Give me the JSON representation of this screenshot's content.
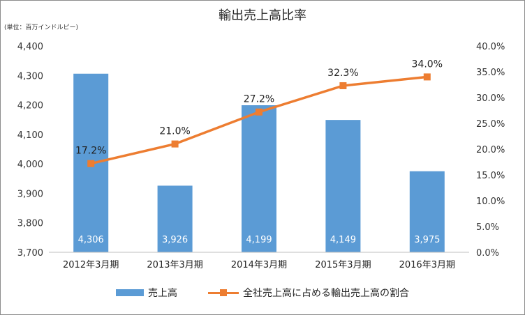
{
  "title": "輸出売上高比率",
  "unit_label": "(単位：百万インドルピー)",
  "colors": {
    "bar": "#5b9bd5",
    "line": "#ed7d31",
    "bar_label": "#ffffff"
  },
  "chart_data": {
    "type": "bar",
    "categories": [
      "2012年3月期",
      "2013年3月期",
      "2014年3月期",
      "2015年3月期",
      "2016年3月期"
    ],
    "series": [
      {
        "name": "売上高",
        "type": "bar",
        "axis": "left",
        "values": [
          4306,
          3926,
          4199,
          4149,
          3975
        ],
        "labels": [
          "4,306",
          "3,926",
          "4,199",
          "4,149",
          "3,975"
        ]
      },
      {
        "name": "全社売上高に占める輸出売上高の割合",
        "type": "line",
        "axis": "right",
        "values": [
          17.2,
          21.0,
          27.2,
          32.3,
          34.0
        ],
        "labels": [
          "17.2%",
          "21.0%",
          "27.2%",
          "32.3%",
          "34.0%"
        ]
      }
    ],
    "left_axis": {
      "ylim": [
        3700,
        4400
      ],
      "ticks": [
        "3,700",
        "3,800",
        "3,900",
        "4,000",
        "4,100",
        "4,200",
        "4,300",
        "4,400"
      ]
    },
    "right_axis": {
      "ylim": [
        0,
        40
      ],
      "ticks": [
        "0.0%",
        "5.0%",
        "10.0%",
        "15.0%",
        "20.0%",
        "25.0%",
        "30.0%",
        "35.0%",
        "40.0%"
      ]
    },
    "grid": false,
    "legend": "bottom"
  }
}
